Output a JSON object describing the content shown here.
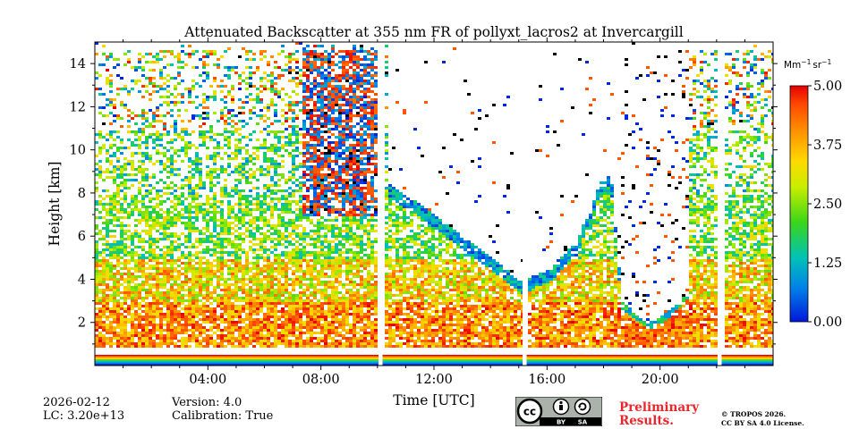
{
  "chart_data": {
    "type": "heatmap",
    "title": "Attenuated Backscatter at 355 nm FR of pollyxt_lacros2 at Invercargill",
    "xlabel": "Time [UTC]",
    "ylabel": "Height [km]",
    "xlim": [
      0,
      24
    ],
    "ylim": [
      0,
      15
    ],
    "x_ticks": [
      {
        "value": 4,
        "label": "04:00"
      },
      {
        "value": 8,
        "label": "08:00"
      },
      {
        "value": 12,
        "label": "12:00"
      },
      {
        "value": 16,
        "label": "16:00"
      },
      {
        "value": 20,
        "label": "20:00"
      }
    ],
    "y_ticks": [
      {
        "value": 2,
        "label": "2"
      },
      {
        "value": 4,
        "label": "4"
      },
      {
        "value": 6,
        "label": "6"
      },
      {
        "value": 8,
        "label": "8"
      },
      {
        "value": 10,
        "label": "10"
      },
      {
        "value": 12,
        "label": "12"
      },
      {
        "value": 14,
        "label": "14"
      }
    ],
    "colorbar": {
      "unit_base": "Mm",
      "unit_exp1": "−1",
      "unit_mid": "sr",
      "unit_exp2": "−1",
      "range": [
        0,
        5
      ],
      "ticks": [
        "0.00",
        "1.25",
        "2.50",
        "3.75",
        "5.00"
      ],
      "tick_values": [
        0,
        1.25,
        2.5,
        3.75,
        5
      ]
    },
    "data_gaps_hours": [
      10.1,
      15.2,
      22.1
    ],
    "cloud_base_profile_km": [
      [
        10.3,
        8.5
      ],
      [
        11.5,
        7.5
      ],
      [
        13.0,
        6.0
      ],
      [
        14.0,
        5.0
      ],
      [
        15.0,
        4.0
      ],
      [
        16.0,
        4.5
      ],
      [
        17.0,
        5.8
      ],
      [
        17.8,
        8.5
      ],
      [
        18.2,
        9.0
      ],
      [
        18.6,
        3.0
      ],
      [
        19.5,
        2.0
      ],
      [
        20.2,
        2.5
      ],
      [
        21.0,
        3.5
      ]
    ]
  },
  "footer": {
    "date": "2026-02-12",
    "lc": "LC: 3.20e+13",
    "version": "Version: 4.0",
    "calibration": "Calibration: True",
    "preliminary_line1": "Preliminary",
    "preliminary_line2": "Results.",
    "copyright_line1": "© TROPOS 2026.",
    "copyright_line2": "CC BY SA 4.0 License.",
    "license_badge": {
      "cc": "cc",
      "by": "BY",
      "sa": "SA"
    }
  }
}
